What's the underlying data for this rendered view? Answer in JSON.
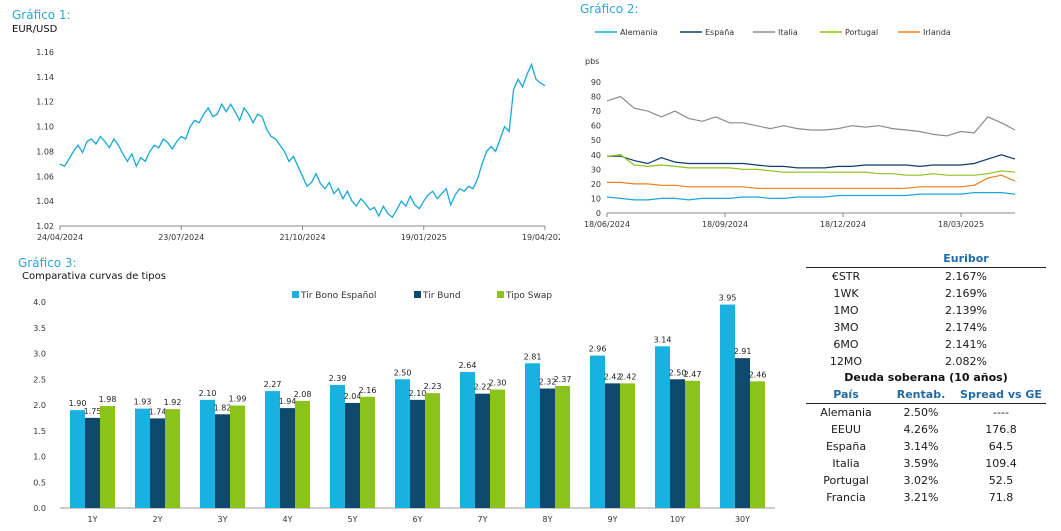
{
  "chart1": {
    "title": "Gráfico 1:",
    "subtitle": "EUR/USD",
    "chart_data": {
      "type": "line",
      "color": "#19a8d8",
      "ylim": [
        1.02,
        1.16
      ],
      "yticks": [
        "1.16",
        "1.14",
        "1.12",
        "1.10",
        "1.08",
        "1.06",
        "1.04",
        "1.02"
      ],
      "xticks": [
        "24/04/2024",
        "23/07/2024",
        "21/10/2024",
        "19/01/2025",
        "19/04/2025"
      ],
      "series": [
        {
          "values": [
            1.07,
            1.068,
            1.074,
            1.08,
            1.085,
            1.079,
            1.088,
            1.09,
            1.086,
            1.092,
            1.088,
            1.083,
            1.09,
            1.085,
            1.078,
            1.072,
            1.078,
            1.068,
            1.075,
            1.072,
            1.08,
            1.085,
            1.083,
            1.09,
            1.087,
            1.082,
            1.088,
            1.092,
            1.09,
            1.1,
            1.105,
            1.103,
            1.11,
            1.115,
            1.108,
            1.11,
            1.118,
            1.112,
            1.118,
            1.112,
            1.105,
            1.115,
            1.11,
            1.103,
            1.11,
            1.108,
            1.098,
            1.092,
            1.09,
            1.085,
            1.08,
            1.072,
            1.076,
            1.068,
            1.06,
            1.052,
            1.055,
            1.062,
            1.054,
            1.05,
            1.055,
            1.046,
            1.05,
            1.042,
            1.048,
            1.04,
            1.036,
            1.042,
            1.038,
            1.033,
            1.035,
            1.028,
            1.036,
            1.03,
            1.027,
            1.033,
            1.04,
            1.036,
            1.044,
            1.037,
            1.034,
            1.04,
            1.045,
            1.048,
            1.042,
            1.046,
            1.05,
            1.037,
            1.045,
            1.05,
            1.048,
            1.052,
            1.05,
            1.058,
            1.07,
            1.08,
            1.084,
            1.08,
            1.09,
            1.1,
            1.096,
            1.13,
            1.138,
            1.132,
            1.142,
            1.15,
            1.138,
            1.135,
            1.133
          ]
        }
      ]
    }
  },
  "chart2": {
    "title": "Gráfico 2:",
    "unit": "pbs",
    "chart_data": {
      "type": "line",
      "ylim": [
        0,
        90
      ],
      "yticks": [
        "90",
        "80",
        "70",
        "60",
        "50",
        "40",
        "30",
        "20",
        "10",
        "0"
      ],
      "xticks": [
        "18/06/2024",
        "18/09/2024",
        "18/12/2024",
        "18/03/2025"
      ],
      "series": [
        {
          "name": "Alemania",
          "color": "#19a8d8",
          "values": [
            11,
            10,
            9,
            9,
            10,
            10,
            9,
            10,
            10,
            10,
            11,
            11,
            10,
            10,
            11,
            11,
            11,
            12,
            12,
            12,
            12,
            12,
            12,
            13,
            13,
            13,
            13,
            14,
            14,
            14,
            13
          ]
        },
        {
          "name": "España",
          "color": "#0f3d6e",
          "values": [
            39,
            39,
            36,
            34,
            38,
            35,
            34,
            34,
            34,
            34,
            34,
            33,
            32,
            32,
            31,
            31,
            31,
            32,
            32,
            33,
            33,
            33,
            33,
            32,
            33,
            33,
            33,
            34,
            37,
            40,
            37
          ]
        },
        {
          "name": "Italia",
          "color": "#8c8c8c",
          "values": [
            77,
            80,
            72,
            70,
            66,
            70,
            65,
            63,
            66,
            62,
            62,
            60,
            58,
            60,
            58,
            57,
            57,
            58,
            60,
            59,
            60,
            58,
            57,
            56,
            54,
            53,
            56,
            55,
            66,
            62,
            57
          ]
        },
        {
          "name": "Portugal",
          "color": "#8cc21c",
          "values": [
            39,
            40,
            33,
            32,
            33,
            32,
            31,
            31,
            31,
            31,
            30,
            30,
            29,
            28,
            28,
            28,
            28,
            28,
            28,
            28,
            27,
            27,
            26,
            26,
            27,
            26,
            26,
            26,
            27,
            29,
            28
          ]
        },
        {
          "name": "Irlanda",
          "color": "#f07d22",
          "values": [
            21,
            21,
            20,
            20,
            19,
            19,
            18,
            18,
            18,
            18,
            18,
            17,
            17,
            17,
            17,
            17,
            17,
            17,
            17,
            17,
            17,
            17,
            17,
            18,
            18,
            18,
            18,
            19,
            24,
            26,
            22
          ]
        }
      ]
    }
  },
  "chart3": {
    "title": "Gráfico 3:",
    "subtitle": "Comparativa curvas de tipos",
    "chart_data": {
      "type": "bar",
      "ylim": [
        0,
        4.0
      ],
      "yticks": [
        "4.0",
        "3.5",
        "3.0",
        "2.5",
        "2.0",
        "1.5",
        "1.0",
        "0.5",
        "0.0"
      ],
      "categories": [
        "1Y",
        "2Y",
        "3Y",
        "4Y",
        "5Y",
        "6Y",
        "7Y",
        "8Y",
        "9Y",
        "10Y",
        "30Y"
      ],
      "series": [
        {
          "name": "Tir Bono Español",
          "color": "#19b2e0",
          "values": [
            1.9,
            1.93,
            2.1,
            2.27,
            2.39,
            2.5,
            2.64,
            2.81,
            2.96,
            3.14,
            3.95
          ],
          "labels": [
            "1.90",
            "1.93",
            "2.10",
            "2.27",
            "2.39",
            "2.50",
            "2.64",
            "2.81",
            "2.96",
            "3.14",
            "3.95"
          ]
        },
        {
          "name": "Tir Bund",
          "color": "#0f4a6e",
          "values": [
            1.75,
            1.74,
            1.82,
            1.94,
            2.04,
            2.1,
            2.22,
            2.32,
            2.42,
            2.5,
            2.91
          ],
          "labels": [
            "1.75",
            "1.74",
            "1.82",
            "1.94",
            "2.04",
            "2.10",
            "2.22",
            "2.32",
            "2.42",
            "2.50",
            "2.91"
          ]
        },
        {
          "name": "Tipo Swap",
          "color": "#8cc21c",
          "values": [
            1.98,
            1.92,
            1.99,
            2.08,
            2.16,
            2.23,
            2.3,
            2.37,
            2.42,
            2.47,
            2.46
          ],
          "labels": [
            "1.98",
            "1.92",
            "1.99",
            "2.08",
            "2.16",
            "2.23",
            "2.30",
            "2.37",
            "2.42",
            "2.47",
            "2.46"
          ]
        }
      ]
    }
  },
  "euribor": {
    "title": "Euribor",
    "rows": [
      {
        "label": "€STR",
        "value": "2.167%"
      },
      {
        "label": "1WK",
        "value": "2.169%"
      },
      {
        "label": "1MO",
        "value": "2.139%"
      },
      {
        "label": "3MO",
        "value": "2.174%"
      },
      {
        "label": "6MO",
        "value": "2.141%"
      },
      {
        "label": "12MO",
        "value": "2.082%"
      }
    ]
  },
  "deuda": {
    "title": "Deuda soberana (10 años)",
    "headers": [
      "País",
      "Rentab.",
      "Spread vs GE"
    ],
    "rows": [
      {
        "pais": "Alemania",
        "rent": "2.50%",
        "spread": "----"
      },
      {
        "pais": "EEUU",
        "rent": "4.26%",
        "spread": "176.8"
      },
      {
        "pais": "España",
        "rent": "3.14%",
        "spread": "64.5"
      },
      {
        "pais": "Italia",
        "rent": "3.59%",
        "spread": "109.4"
      },
      {
        "pais": "Portugal",
        "rent": "3.02%",
        "spread": "52.5"
      },
      {
        "pais": "Francia",
        "rent": "3.21%",
        "spread": "71.8"
      }
    ]
  }
}
